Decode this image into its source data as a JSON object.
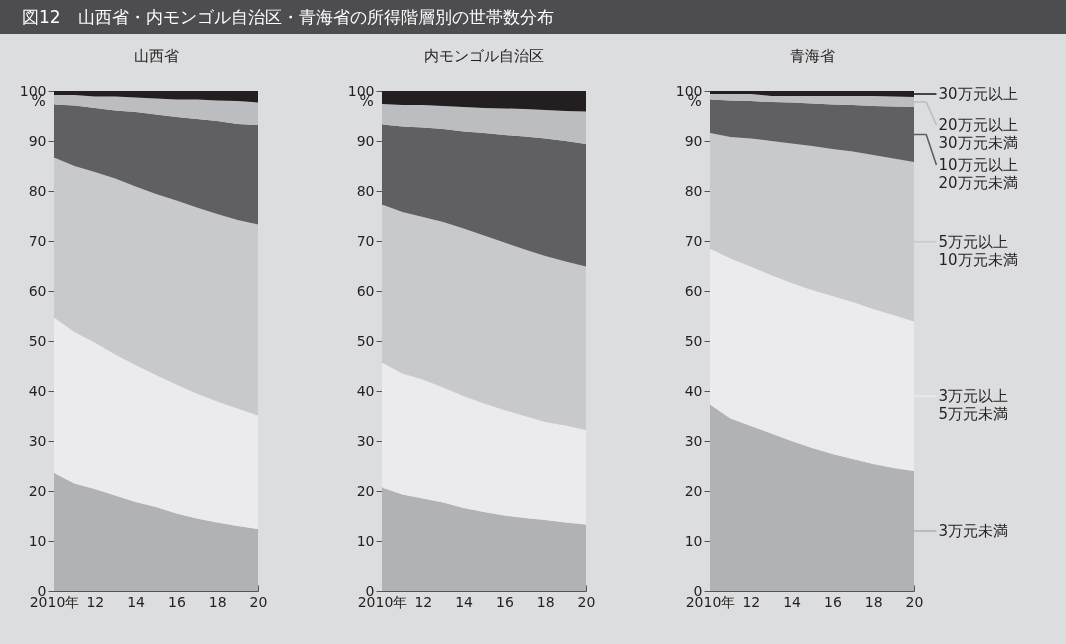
{
  "chart_data": [
    {
      "type": "area",
      "stacked": true,
      "title": "図12　山西省・内モンゴル自治区・青海省の所得階層別の世帯数分布",
      "subtitle": "山西省",
      "ylabel": "%",
      "x": [
        2010,
        2011,
        2012,
        2013,
        2014,
        2015,
        2016,
        2017,
        2018,
        2019,
        2020
      ],
      "xlim": [
        2010,
        2020
      ],
      "xticks": [
        {
          "value": 2010,
          "label": "2010年"
        },
        {
          "value": 2012,
          "label": "12"
        },
        {
          "value": 2014,
          "label": "14"
        },
        {
          "value": 2016,
          "label": "16"
        },
        {
          "value": 2018,
          "label": "18"
        },
        {
          "value": 2020,
          "label": "20"
        }
      ],
      "ylim": [
        0,
        100
      ],
      "yticks": [
        0,
        10,
        20,
        30,
        40,
        50,
        60,
        70,
        80,
        90,
        100
      ],
      "series": [
        {
          "color": "#b1b2b5",
          "values": [
            23.6,
            21.5,
            20.4,
            19.1,
            17.8,
            16.8,
            15.5,
            14.5,
            13.7,
            13.0,
            12.4
          ]
        },
        {
          "color": "#ebebed",
          "values": [
            31.1,
            30.3,
            29.3,
            28.2,
            27.4,
            26.4,
            25.8,
            25.0,
            24.2,
            23.5,
            22.7
          ]
        },
        {
          "color": "#c8c9cb",
          "values": [
            32.0,
            33.2,
            34.1,
            35.2,
            35.7,
            36.2,
            36.8,
            37.2,
            37.5,
            37.7,
            38.2
          ]
        },
        {
          "color": "#606062",
          "values": [
            10.6,
            12.1,
            12.8,
            13.6,
            14.9,
            15.9,
            16.7,
            17.7,
            18.6,
            19.2,
            19.9
          ]
        },
        {
          "color": "#bcbdc0",
          "values": [
            1.9,
            2.1,
            2.3,
            2.8,
            2.9,
            3.2,
            3.5,
            3.9,
            4.1,
            4.6,
            4.5
          ]
        },
        {
          "color": "#231f20",
          "values": [
            0.8,
            0.8,
            1.1,
            1.1,
            1.3,
            1.5,
            1.7,
            1.7,
            1.9,
            2.0,
            2.3
          ]
        }
      ]
    },
    {
      "type": "area",
      "stacked": true,
      "subtitle": "内モンゴル自治区",
      "ylabel": "%",
      "x": [
        2010,
        2011,
        2012,
        2013,
        2014,
        2015,
        2016,
        2017,
        2018,
        2019,
        2020
      ],
      "xlim": [
        2010,
        2020
      ],
      "xticks": [
        {
          "value": 2010,
          "label": "2010年"
        },
        {
          "value": 2012,
          "label": "12"
        },
        {
          "value": 2014,
          "label": "14"
        },
        {
          "value": 2016,
          "label": "16"
        },
        {
          "value": 2018,
          "label": "18"
        },
        {
          "value": 2020,
          "label": "20"
        }
      ],
      "ylim": [
        0,
        100
      ],
      "yticks": [
        0,
        10,
        20,
        30,
        40,
        50,
        60,
        70,
        80,
        90,
        100
      ],
      "series": [
        {
          "color": "#b1b2b5",
          "values": [
            20.7,
            19.3,
            18.5,
            17.7,
            16.6,
            15.8,
            15.1,
            14.6,
            14.2,
            13.7,
            13.3
          ]
        },
        {
          "color": "#ebebed",
          "values": [
            25.0,
            24.2,
            23.8,
            23.0,
            22.4,
            21.7,
            21.1,
            20.4,
            19.6,
            19.4,
            18.9
          ]
        },
        {
          "color": "#c8c9cb",
          "values": [
            31.6,
            32.3,
            32.5,
            33.1,
            33.5,
            33.6,
            33.5,
            33.3,
            33.2,
            32.8,
            32.7
          ]
        },
        {
          "color": "#606062",
          "values": [
            16.0,
            17.1,
            17.9,
            18.6,
            19.4,
            20.5,
            21.5,
            22.6,
            23.5,
            24.1,
            24.5
          ]
        },
        {
          "color": "#bcbdc0",
          "values": [
            4.1,
            4.3,
            4.5,
            4.6,
            4.9,
            5.0,
            5.3,
            5.5,
            5.7,
            6.0,
            6.5
          ]
        },
        {
          "color": "#231f20",
          "values": [
            2.6,
            2.8,
            2.8,
            3.0,
            3.2,
            3.4,
            3.5,
            3.6,
            3.8,
            4.0,
            4.1
          ]
        }
      ]
    },
    {
      "type": "area",
      "stacked": true,
      "subtitle": "青海省",
      "ylabel": "%",
      "legend": "right",
      "x": [
        2010,
        2011,
        2012,
        2013,
        2014,
        2015,
        2016,
        2017,
        2018,
        2019,
        2020
      ],
      "xlim": [
        2010,
        2020
      ],
      "xticks": [
        {
          "value": 2010,
          "label": "2010年"
        },
        {
          "value": 2012,
          "label": "12"
        },
        {
          "value": 2014,
          "label": "14"
        },
        {
          "value": 2016,
          "label": "16"
        },
        {
          "value": 2018,
          "label": "18"
        },
        {
          "value": 2020,
          "label": "20"
        }
      ],
      "ylim": [
        0,
        100
      ],
      "yticks": [
        0,
        10,
        20,
        30,
        40,
        50,
        60,
        70,
        80,
        90,
        100
      ],
      "series": [
        {
          "name": "3万元未満",
          "color": "#b1b2b5",
          "values": [
            37.3,
            34.5,
            33.0,
            31.5,
            30.0,
            28.6,
            27.4,
            26.4,
            25.4,
            24.6,
            24.0
          ]
        },
        {
          "name": "3万元以上\n5万元未満",
          "color": "#ebebed",
          "values": [
            31.2,
            32.0,
            31.9,
            31.7,
            31.6,
            31.6,
            31.6,
            31.4,
            31.0,
            30.6,
            29.9
          ]
        },
        {
          "name": "5万元以上\n10万元未満",
          "color": "#c8c9cb",
          "values": [
            23.1,
            24.3,
            25.6,
            26.8,
            27.9,
            28.8,
            29.4,
            30.1,
            30.8,
            31.3,
            31.9
          ]
        },
        {
          "name": "10万元以上\n20万元未満",
          "color": "#606062",
          "values": [
            6.7,
            7.3,
            7.5,
            7.8,
            8.2,
            8.5,
            8.9,
            9.3,
            9.8,
            10.4,
            11.0
          ]
        },
        {
          "name": "20万元以上\n30万元未満",
          "color": "#bcbdc0",
          "values": [
            1.1,
            1.3,
            1.4,
            1.2,
            1.3,
            1.5,
            1.7,
            1.8,
            2.0,
            2.0,
            2.0
          ]
        },
        {
          "name": "30万元以上",
          "color": "#231f20",
          "values": [
            0.6,
            0.6,
            0.6,
            1.0,
            1.0,
            1.0,
            1.0,
            1.0,
            1.0,
            1.1,
            1.2
          ]
        }
      ]
    }
  ]
}
